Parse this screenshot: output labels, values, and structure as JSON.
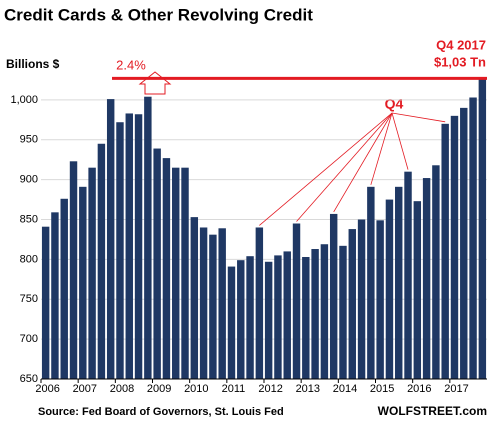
{
  "chart_data": {
    "type": "bar",
    "title": "Credit Cards & Other Revolving Credit",
    "y_axis_label": "Billions $",
    "categories": [
      "2006",
      null,
      null,
      null,
      "2007",
      null,
      null,
      null,
      "2008",
      null,
      null,
      null,
      "2009",
      null,
      null,
      null,
      "2010",
      null,
      null,
      null,
      "2011",
      null,
      null,
      null,
      "2012",
      null,
      null,
      null,
      "2013",
      null,
      null,
      null,
      "2014",
      null,
      null,
      null,
      "2015",
      null,
      null,
      null,
      "2016",
      null,
      null,
      null,
      "2017",
      null,
      null,
      null
    ],
    "values": [
      841,
      859,
      876,
      923,
      891,
      915,
      945,
      1001,
      972,
      983,
      982,
      1004,
      939,
      927,
      915,
      915,
      853,
      840,
      831,
      839,
      791,
      799,
      804,
      840,
      797,
      805,
      810,
      845,
      803,
      813,
      819,
      857,
      817,
      838,
      850,
      891,
      849,
      875,
      891,
      910,
      873,
      902,
      918,
      970,
      980,
      990,
      1003,
      1027
    ],
    "color": "#1f3864",
    "ylim": [
      650,
      1040
    ],
    "yticks": [
      650,
      700,
      750,
      800,
      850,
      900,
      950,
      {
        "value": 1000,
        "label": "1,000"
      }
    ],
    "grid": true,
    "reference_line": {
      "value": 1027,
      "color": "#e31b23"
    },
    "annotations": {
      "peak_change": "2.4%",
      "latest_period": "Q4 2017",
      "latest_value": "$1,03 Tn",
      "quarter_marker": "Q4"
    },
    "source": "Source: Fed Board of Governors, St. Louis Fed",
    "brand": "WOLFSTREET.com"
  }
}
